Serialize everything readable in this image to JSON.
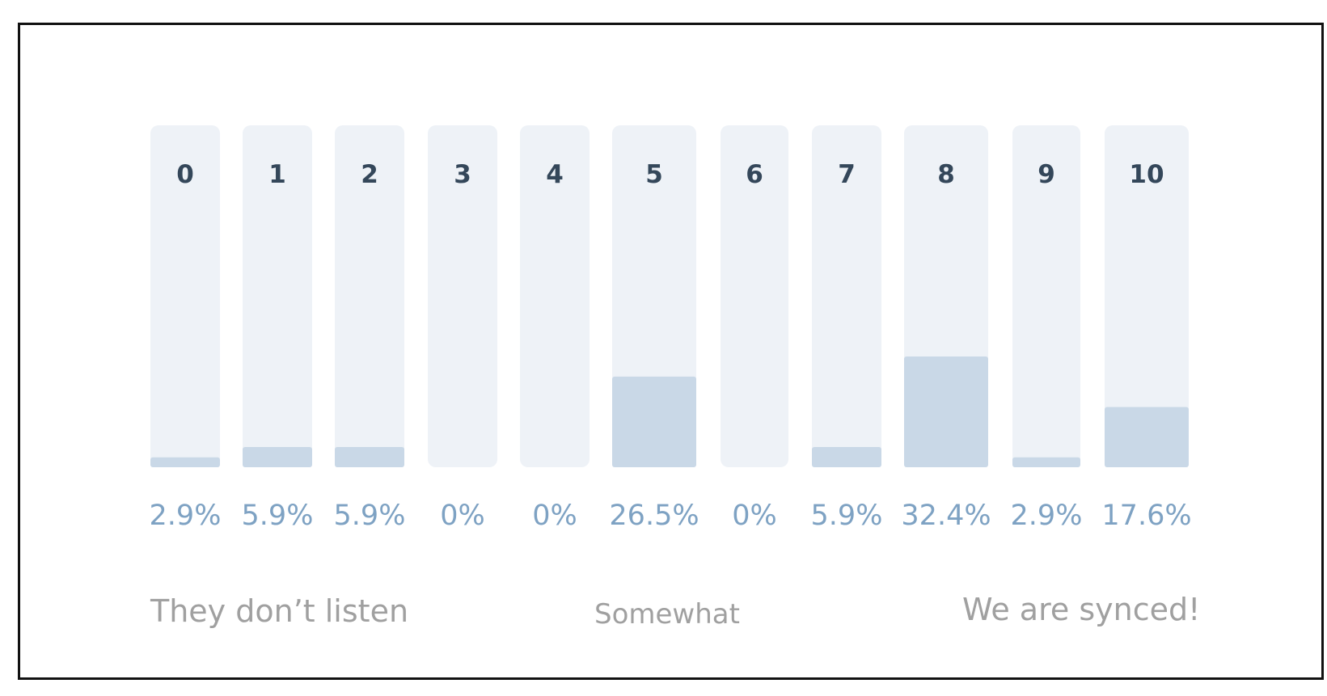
{
  "colors": {
    "track": "#eef2f7",
    "fill": "#c9d8e7",
    "category_label": "#34475a",
    "value_label": "#7ea2c3",
    "scale_label": "#a0a0a0"
  },
  "chart_data": {
    "type": "bar",
    "categories": [
      "0",
      "1",
      "2",
      "3",
      "4",
      "5",
      "6",
      "7",
      "8",
      "9",
      "10"
    ],
    "values": [
      2.9,
      5.9,
      5.9,
      0,
      0,
      26.5,
      0,
      5.9,
      32.4,
      2.9,
      17.6
    ],
    "value_labels": [
      "2.9%",
      "5.9%",
      "5.9%",
      "0%",
      "0%",
      "26.5%",
      "0%",
      "5.9%",
      "32.4%",
      "2.9%",
      "17.6%"
    ],
    "ylim": [
      0,
      100
    ],
    "grid": false,
    "title": "",
    "xlabel": "",
    "ylabel": ""
  },
  "scale_labels": {
    "low": "They don’t listen",
    "mid": "Somewhat",
    "high": "We are synced!"
  }
}
